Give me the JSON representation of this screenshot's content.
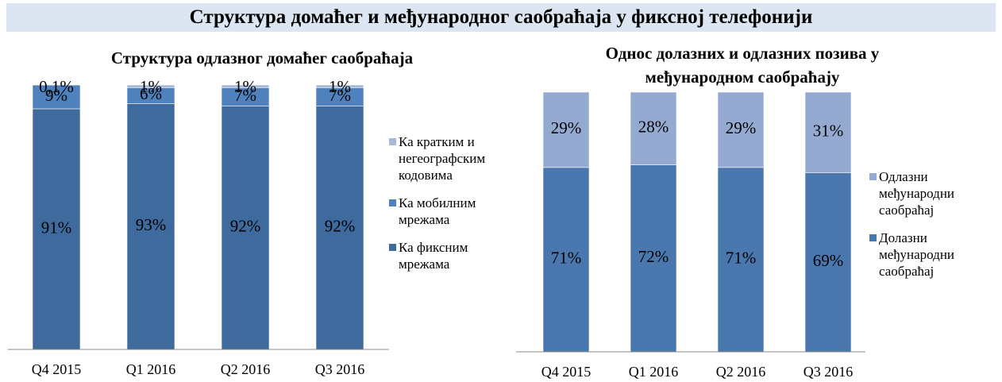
{
  "title": "Структура домаћег и међународног саобраћаја у фиксној телефонији",
  "chart_data": [
    {
      "type": "bar",
      "stacked": true,
      "title": "Структура одлазног домаћег саобраћаја",
      "categories": [
        "Q4 2015",
        "Q1 2016",
        "Q2 2016",
        "Q3 2016"
      ],
      "ylim": [
        0,
        100
      ],
      "legend": "right",
      "series": [
        {
          "name": "Ка фиксним мрежама",
          "color": "#3f6a9d",
          "values": [
            91,
            93,
            92,
            92
          ],
          "value_labels": [
            "91%",
            "93%",
            "92%",
            "92%"
          ]
        },
        {
          "name": "Ка мобилним мрежама",
          "color": "#4f81bd",
          "values": [
            9,
            6,
            7,
            7
          ],
          "value_labels": [
            "9%",
            "6%",
            "7%",
            "7%"
          ]
        },
        {
          "name": "Ка кратким и негеографским кодовима",
          "color": "#a7b9d9",
          "values": [
            0.1,
            1,
            1,
            1
          ],
          "value_labels": [
            "0,1%",
            "1%",
            "1%",
            "1%"
          ]
        }
      ]
    },
    {
      "type": "bar",
      "stacked": true,
      "title": "Однос долазних и одлазних позива у међународном саобраћају",
      "categories": [
        "Q4 2015",
        "Q1 2016",
        "Q2 2016",
        "Q3 2016"
      ],
      "ylim": [
        0,
        100
      ],
      "legend": "right",
      "series": [
        {
          "name": "Долазни међународни саобраћај",
          "color": "#4a77ae",
          "values": [
            71,
            72,
            71,
            69
          ],
          "value_labels": [
            "71%",
            "72%",
            "71%",
            "69%"
          ]
        },
        {
          "name": "Одлазни међународни саобраћај",
          "color": "#95aad0",
          "values": [
            29,
            28,
            29,
            31
          ],
          "value_labels": [
            "29%",
            "28%",
            "29%",
            "31%"
          ]
        }
      ]
    }
  ]
}
